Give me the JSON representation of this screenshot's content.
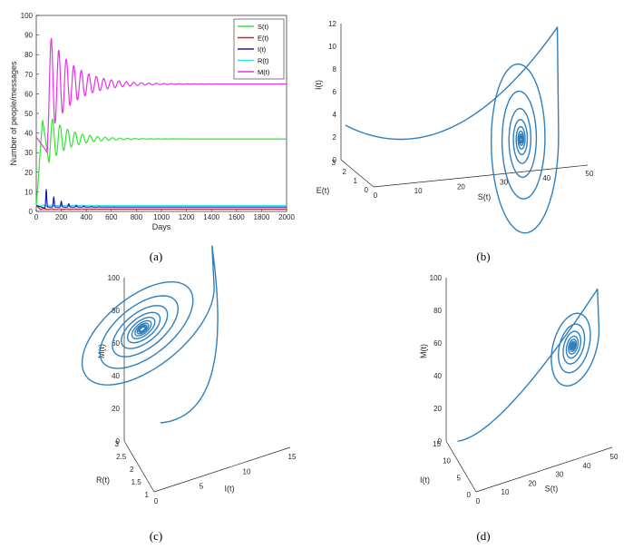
{
  "chart_data": [
    {
      "panel": "(a)",
      "type": "line",
      "xlabel": "Days",
      "ylabel": "Number of people/messages",
      "xlim": [
        0,
        2000
      ],
      "ylim": [
        0,
        100
      ],
      "xticks": [
        0,
        200,
        400,
        600,
        800,
        1000,
        1200,
        1400,
        1600,
        1800,
        2000
      ],
      "yticks": [
        0,
        10,
        20,
        30,
        40,
        50,
        60,
        70,
        80,
        90,
        100
      ],
      "legend_position": "top-right",
      "series": [
        {
          "name": "S(t)",
          "color": "#33e633",
          "equilibrium": 37,
          "first_peak": 47,
          "first_trough": 25
        },
        {
          "name": "E(t)",
          "color": "#d92020",
          "equilibrium": 1
        },
        {
          "name": "I(t)",
          "color": "#1a1ab3",
          "equilibrium": 2,
          "first_peak": 11.5
        },
        {
          "name": "R(t)",
          "color": "#33e6e6",
          "equilibrium": 3
        },
        {
          "name": "M(t)",
          "color": "#e633e6",
          "equilibrium": 65,
          "first_peak": 92,
          "first_trough": 30
        }
      ]
    },
    {
      "panel": "(b)",
      "type": "line3d",
      "xlabel": "S(t)",
      "ylabel": "E(t)",
      "zlabel": "I(t)",
      "xticks": [
        0,
        10,
        20,
        30,
        40,
        50
      ],
      "yticks": [
        0,
        1,
        2,
        3
      ],
      "zticks": [
        0,
        2,
        4,
        6,
        8,
        10,
        12
      ],
      "color": "#2e7fbf",
      "attractor": {
        "x": 37,
        "y": 1,
        "z": 2
      }
    },
    {
      "panel": "(c)",
      "type": "line3d",
      "xlabel": "I(t)",
      "ylabel": "R(t)",
      "zlabel": "M(t)",
      "xticks": [
        0,
        5,
        10,
        15
      ],
      "yticks": [
        1,
        1.5,
        2,
        2.5,
        3
      ],
      "zticks": [
        0,
        20,
        40,
        60,
        80,
        100
      ],
      "color": "#2e7fbf",
      "attractor": {
        "x": 2,
        "y": 3,
        "z": 65
      }
    },
    {
      "panel": "(d)",
      "type": "line3d",
      "xlabel": "S(t)",
      "ylabel": "I(t)",
      "zlabel": "M(t)",
      "xticks": [
        0,
        10,
        20,
        30,
        40,
        50
      ],
      "yticks": [
        0,
        5,
        10,
        15
      ],
      "zticks": [
        0,
        20,
        40,
        60,
        80,
        100
      ],
      "color": "#2e7fbf",
      "attractor": {
        "x": 37,
        "y": 2,
        "z": 65
      }
    }
  ]
}
